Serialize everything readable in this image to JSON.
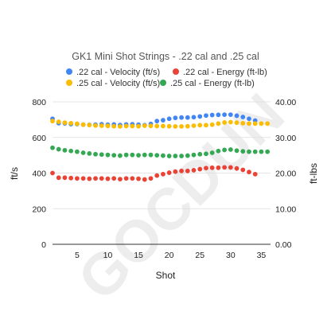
{
  "watermark": "GOCDUN",
  "chart_data": {
    "type": "scatter",
    "title": "GK1 Mini Shot Strings - .22 cal and .25 cal",
    "xlabel": "Shot",
    "ylabel": "ft/s",
    "y2label": "ft-lbs",
    "xlim": [
      1,
      36.5
    ],
    "ylim": [
      0,
      800
    ],
    "y2lim": [
      0,
      40
    ],
    "x_ticks": [
      5,
      10,
      15,
      20,
      25,
      30,
      35
    ],
    "y_ticks": [
      0,
      200,
      400,
      600,
      800
    ],
    "y2_ticks": [
      "0.00",
      "10.00",
      "20.00",
      "30.00",
      "40.00"
    ],
    "grid": "horizontal",
    "legend": "top",
    "series": [
      {
        "name": ".22 cal - Velocity (ft/s)",
        "axis": "left",
        "color": "#4285f4",
        "x": [
          1,
          2,
          3,
          4,
          5,
          6,
          7,
          8,
          9,
          10,
          11,
          12,
          13,
          14,
          15,
          16,
          17,
          18,
          19,
          20,
          21,
          22,
          23,
          24,
          25,
          26,
          27,
          28,
          29,
          30,
          31,
          32,
          33,
          34
        ],
        "y": [
          705,
          680,
          679,
          675,
          675,
          672,
          671,
          672,
          674,
          672,
          673,
          670,
          673,
          674,
          672,
          669,
          676,
          692,
          697,
          705,
          710,
          712,
          712,
          714,
          718,
          723,
          726,
          727,
          728,
          728,
          722,
          715,
          705,
          695
        ]
      },
      {
        "name": ".22 cal - Energy (ft-lb)",
        "axis": "right",
        "color": "#ea4335",
        "x": [
          1,
          2,
          3,
          4,
          5,
          6,
          7,
          8,
          9,
          10,
          11,
          12,
          13,
          14,
          15,
          16,
          17,
          18,
          19,
          20,
          21,
          22,
          23,
          24,
          25,
          26,
          27,
          28,
          29,
          30,
          31,
          32,
          33,
          34
        ],
        "y": [
          20.0,
          18.7,
          18.7,
          18.6,
          18.5,
          18.5,
          18.4,
          18.5,
          18.5,
          18.4,
          18.5,
          18.3,
          18.5,
          18.5,
          18.4,
          18.2,
          18.5,
          19.3,
          19.7,
          20.1,
          20.4,
          20.6,
          20.6,
          20.8,
          21.1,
          21.4,
          21.5,
          21.5,
          21.6,
          21.6,
          21.3,
          20.9,
          20.3,
          19.7
        ]
      },
      {
        "name": ".25 cal - Velocity (ft/s)",
        "axis": "left",
        "color": "#fbbc04",
        "x": [
          1,
          2,
          3,
          4,
          5,
          6,
          7,
          8,
          9,
          10,
          11,
          12,
          13,
          14,
          15,
          16,
          17,
          18,
          19,
          20,
          21,
          22,
          23,
          24,
          25,
          26,
          27,
          28,
          29,
          30,
          31,
          32,
          33,
          34,
          35,
          36
        ],
        "y": [
          692,
          688,
          683,
          680,
          677,
          672,
          670,
          667,
          666,
          665,
          663,
          662,
          664,
          664,
          663,
          666,
          665,
          664,
          664,
          663,
          662,
          662,
          663,
          666,
          669,
          669,
          672,
          678,
          684,
          686,
          683,
          680,
          678,
          678,
          678,
          678
        ]
      },
      {
        "name": ".25 cal - Energy (ft-lb)",
        "axis": "right",
        "color": "#34a853",
        "x": [
          1,
          2,
          3,
          4,
          5,
          6,
          7,
          8,
          9,
          10,
          11,
          12,
          13,
          14,
          15,
          16,
          17,
          18,
          19,
          20,
          21,
          22,
          23,
          24,
          25,
          26,
          27,
          28,
          29,
          30,
          31,
          32,
          33,
          34,
          35,
          36
        ],
        "y": [
          27.1,
          26.7,
          26.4,
          26.2,
          26.0,
          25.7,
          25.5,
          25.3,
          25.2,
          25.1,
          25.0,
          24.9,
          25.1,
          25.1,
          25.0,
          25.1,
          25.1,
          25.0,
          24.9,
          24.8,
          24.8,
          24.8,
          24.9,
          25.1,
          25.3,
          25.4,
          25.7,
          26.2,
          26.5,
          26.6,
          26.3,
          26.1,
          26.0,
          26.0,
          26.0,
          26.0
        ]
      }
    ]
  }
}
